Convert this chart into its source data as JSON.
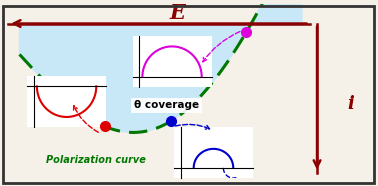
{
  "bg_color": "#f5f0e8",
  "border_color": "#333333",
  "axis_color": "#8b0000",
  "E_label": "E",
  "i_label": "i",
  "E_label_color": "#8b0000",
  "i_label_color": "#8b0000",
  "polarization_label": "Polarization curve",
  "polarization_color": "#007700",
  "theta_label": "θ coverage",
  "shaded_color": "#c8e8f8",
  "green_curve_color": "#007700",
  "red_dot_color": "#dd0000",
  "blue_dot_color": "#0000cc",
  "magenta_dot_color": "#dd00dd",
  "red_loop_color": "#dd0000",
  "magenta_loop_color": "#dd00dd",
  "blue_loop_color": "#0000cc"
}
